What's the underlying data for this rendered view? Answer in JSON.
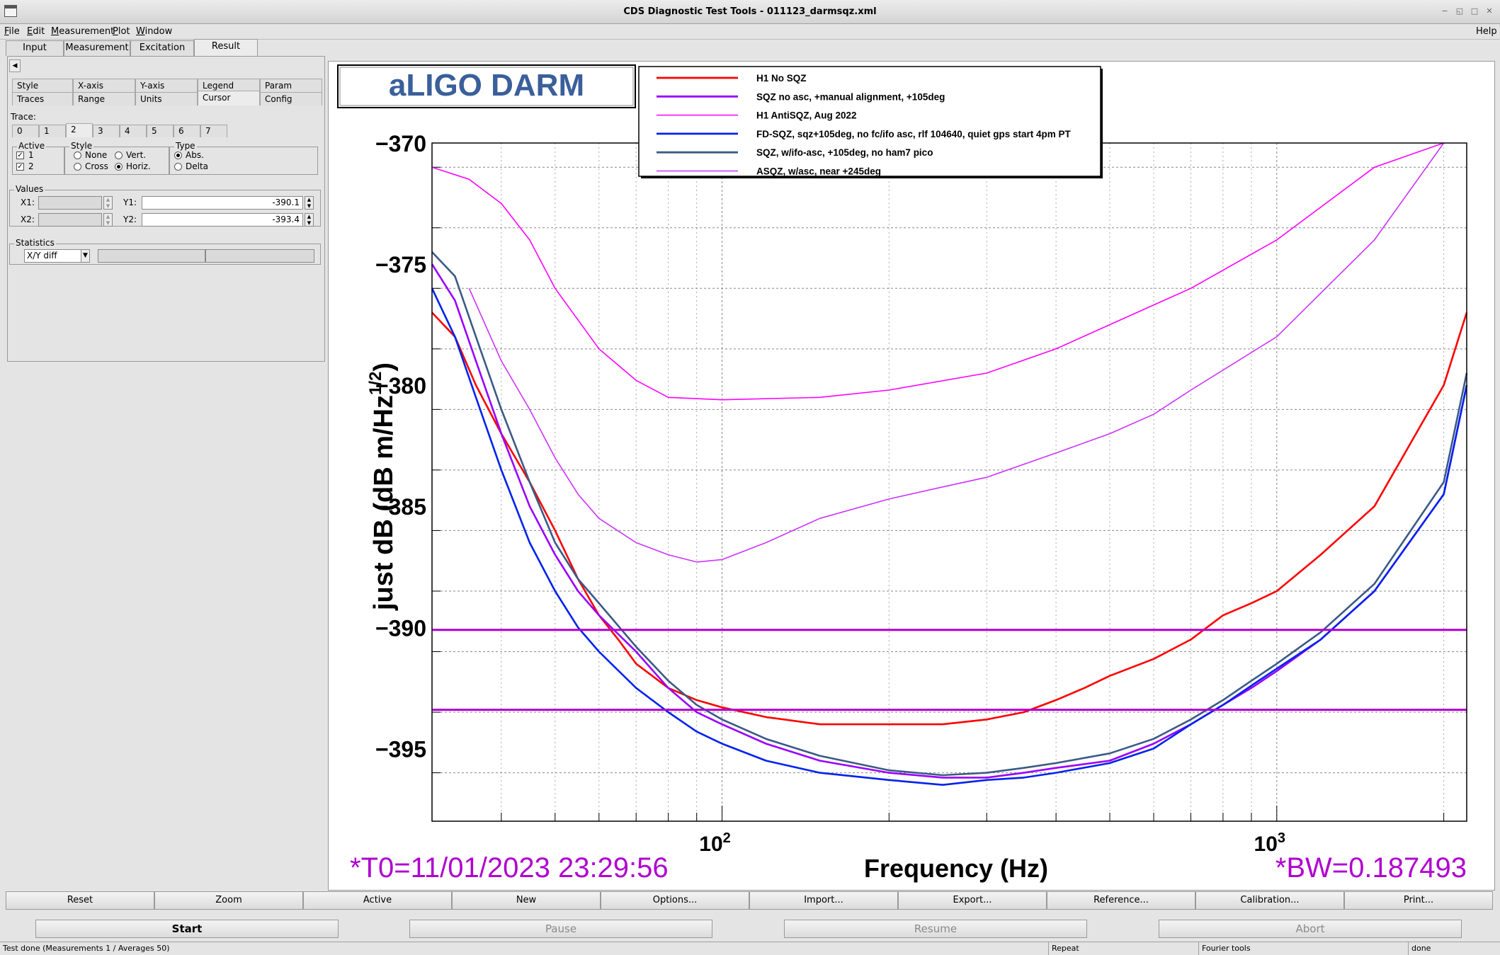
{
  "window": {
    "title": "CDS Diagnostic Test Tools - 011123_darmsqz.xml",
    "help": "Help"
  },
  "menu": [
    {
      "u": "F",
      "rest": "ile"
    },
    {
      "u": "E",
      "rest": "dit"
    },
    {
      "u": "M",
      "rest": "easurement"
    },
    {
      "u": "P",
      "rest": "lot"
    },
    {
      "u": "W",
      "rest": "indow"
    }
  ],
  "main_tabs": [
    "Input",
    "Measurement",
    "Excitation",
    "Result"
  ],
  "left_panel": {
    "subtabs_row1": [
      "Style",
      "X-axis",
      "Y-axis",
      "Legend",
      "Param"
    ],
    "subtabs_row2": [
      "Traces",
      "Range",
      "Units",
      "Cursor",
      "Config"
    ],
    "trace_label": "Trace:",
    "trace_tabs": [
      "0",
      "1",
      "2",
      "3",
      "4",
      "5",
      "6",
      "7"
    ],
    "active_group": {
      "title": "Active",
      "items": [
        "1",
        "2"
      ]
    },
    "style_group": {
      "title": "Style",
      "none": "None",
      "vert": "Vert.",
      "cross": "Cross",
      "horiz": "Horiz."
    },
    "type_group": {
      "title": "Type",
      "abs": "Abs.",
      "delta": "Delta"
    },
    "values": {
      "title": "Values",
      "x1_label": "X1:",
      "x2_label": "X2:",
      "y1_label": "Y1:",
      "y2_label": "Y2:",
      "y1": "-390.1",
      "y2": "-393.4"
    },
    "statistics": {
      "title": "Statistics",
      "selected": "X/Y diff"
    }
  },
  "plot": {
    "title_box": "aLIGO DARM",
    "t0_text": "*T0=11/01/2023 23:29:56",
    "bw_text": "*BW=0.187493",
    "colors": {
      "red": "#ff0000",
      "purple": "#9900ff",
      "magenta": "#ff00ff",
      "blue": "#0022ee",
      "slate": "#3b5a85",
      "violet": "#cc33ff",
      "cursor": "#b000d0"
    }
  },
  "chart_data": {
    "type": "line",
    "xscale": "log",
    "xlabel": "Frequency (Hz)",
    "ylabel_main": "just dB (dB m/Hz",
    "ylabel_sup": "1/2",
    "ylabel_close": ")",
    "xlim": [
      30,
      2200
    ],
    "ylim": [
      -398,
      -370
    ],
    "yticks": [
      -370,
      -375,
      -380,
      -385,
      -390,
      -395
    ],
    "xticks_labeled": [
      {
        "base": "10",
        "exp": "2",
        "value": 100
      },
      {
        "base": "10",
        "exp": "3",
        "value": 1000
      }
    ],
    "grid": true,
    "legend_position": "top",
    "cursors": {
      "y1": -390.1,
      "y2": -393.4
    },
    "series": [
      {
        "name": "H1 No SQZ",
        "color": "#ff0000",
        "x": [
          30,
          33,
          36,
          40,
          45,
          50,
          55,
          60,
          65,
          70,
          80,
          90,
          100,
          120,
          150,
          200,
          250,
          300,
          350,
          400,
          450,
          500,
          600,
          700,
          800,
          900,
          1000,
          1200,
          1500,
          2000,
          2200
        ],
        "y": [
          -377,
          -378,
          -380,
          -382,
          -384,
          -386,
          -388,
          -389.5,
          -390.5,
          -391.5,
          -392.5,
          -393,
          -393.3,
          -393.7,
          -394,
          -394,
          -394,
          -393.8,
          -393.5,
          -393,
          -392.5,
          -392,
          -391.3,
          -390.5,
          -389.5,
          -389,
          -388.5,
          -387,
          -385,
          -380,
          -377
        ]
      },
      {
        "name": "SQZ no asc, +manual alignment, +105deg",
        "color": "#9900ff",
        "x": [
          30,
          33,
          36,
          40,
          45,
          50,
          55,
          60,
          70,
          80,
          90,
          100,
          120,
          150,
          200,
          250,
          300,
          350,
          400,
          500,
          600,
          700,
          800,
          900,
          1000,
          1200,
          1500,
          2000,
          2200
        ],
        "y": [
          -375,
          -376.5,
          -379,
          -382,
          -385,
          -387,
          -388.5,
          -389.5,
          -391,
          -392.5,
          -393.5,
          -394,
          -394.8,
          -395.5,
          -396,
          -396.2,
          -396.2,
          -396,
          -395.8,
          -395.5,
          -394.8,
          -394,
          -393.2,
          -392.5,
          -391.8,
          -390.5,
          -388.5,
          -384.5,
          -380
        ]
      },
      {
        "name": "H1 AntiSQZ, Aug 2022",
        "color": "#ff00ff",
        "x": [
          30,
          35,
          40,
          45,
          50,
          60,
          70,
          80,
          100,
          150,
          200,
          300,
          400,
          500,
          700,
          1000,
          1500,
          2000
        ],
        "y": [
          -371,
          -371.5,
          -372.5,
          -374,
          -376,
          -378.5,
          -379.8,
          -380.5,
          -380.6,
          -380.5,
          -380.2,
          -379.5,
          -378.5,
          -377.5,
          -376,
          -374,
          -371,
          -369
        ]
      },
      {
        "name": "FD-SQZ, sqz+105deg, no fc/ifo asc, rlf 104640, quiet gps start 4pm PT",
        "color": "#0022ee",
        "x": [
          30,
          33,
          36,
          40,
          45,
          50,
          55,
          60,
          70,
          80,
          90,
          100,
          120,
          150,
          200,
          250,
          300,
          350,
          400,
          500,
          600,
          700,
          800,
          900,
          1000,
          1200,
          1500,
          2000,
          2200
        ],
        "y": [
          -376,
          -378,
          -380.5,
          -383.5,
          -386.5,
          -388.5,
          -390,
          -391,
          -392.5,
          -393.5,
          -394.3,
          -394.8,
          -395.5,
          -396,
          -396.3,
          -396.5,
          -396.3,
          -396.2,
          -396,
          -395.6,
          -395,
          -394,
          -393.2,
          -392.4,
          -391.7,
          -390.5,
          -388.5,
          -384.5,
          -380
        ]
      },
      {
        "name": "SQZ, w/ifo-asc, +105deg, no ham7 pico",
        "color": "#3b5a85",
        "x": [
          30,
          33,
          36,
          40,
          45,
          50,
          55,
          60,
          70,
          80,
          90,
          100,
          120,
          150,
          200,
          250,
          300,
          350,
          400,
          500,
          600,
          700,
          800,
          900,
          1000,
          1200,
          1500,
          2000,
          2200
        ],
        "y": [
          -374.5,
          -375.5,
          -378,
          -381,
          -384,
          -386.5,
          -388,
          -389,
          -390.8,
          -392.2,
          -393.2,
          -393.8,
          -394.6,
          -395.3,
          -395.9,
          -396.1,
          -396,
          -395.8,
          -395.6,
          -395.2,
          -394.6,
          -393.8,
          -393,
          -392.2,
          -391.5,
          -390.2,
          -388.2,
          -384,
          -379.5
        ]
      },
      {
        "name": "ASQZ, w/asc, near +245deg",
        "color": "#cc33ff",
        "x": [
          35,
          40,
          45,
          50,
          55,
          60,
          70,
          80,
          90,
          100,
          120,
          150,
          200,
          250,
          300,
          400,
          500,
          600,
          700,
          1000,
          1500,
          2000
        ],
        "y": [
          -376,
          -379,
          -381,
          -383,
          -384.5,
          -385.5,
          -386.5,
          -387,
          -387.3,
          -387.2,
          -386.5,
          -385.5,
          -384.7,
          -384.2,
          -383.8,
          -382.8,
          -382,
          -381.2,
          -380.2,
          -378,
          -374,
          -370
        ]
      }
    ]
  },
  "buttons_row1": [
    "Reset",
    "Zoom",
    "Active",
    "New",
    "Options...",
    "Import...",
    "Export...",
    "Reference...",
    "Calibration...",
    "Print..."
  ],
  "buttons_row2": [
    "Start",
    "Pause",
    "Resume",
    "Abort"
  ],
  "status": {
    "left": "Test done (Measurements 1 / Averages 50)",
    "repeat": "Repeat",
    "fourier": "Fourier tools",
    "done": "done"
  }
}
